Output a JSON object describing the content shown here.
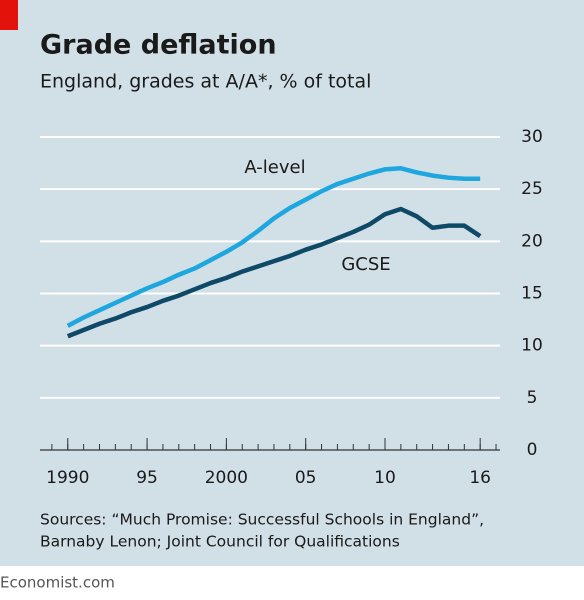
{
  "chart_data": {
    "type": "line",
    "title": "Grade deflation",
    "subtitle": "England, grades at A/A*, % of total",
    "source": [
      "Sources: “Much Promise: Successful Schools in England”,",
      "Barnaby Lenon; Joint Council for Qualifications"
    ],
    "footer": "Economist.com",
    "x": [
      1990,
      1991,
      1992,
      1993,
      1994,
      1995,
      1996,
      1997,
      1998,
      1999,
      2000,
      2001,
      2002,
      2003,
      2004,
      2005,
      2006,
      2007,
      2008,
      2009,
      2010,
      2011,
      2012,
      2013,
      2014,
      2015,
      2016
    ],
    "series": [
      {
        "name": "A-level",
        "color": "#1ea6df",
        "values": [
          11.9,
          12.7,
          13.4,
          14.1,
          14.8,
          15.5,
          16.1,
          16.8,
          17.4,
          18.2,
          19.0,
          19.9,
          21.0,
          22.2,
          23.2,
          24.0,
          24.8,
          25.5,
          26.0,
          26.5,
          26.9,
          27.0,
          26.6,
          26.3,
          26.1,
          26.0,
          26.0
        ]
      },
      {
        "name": "GCSE",
        "color": "#0e4a68",
        "values": [
          10.9,
          11.5,
          12.1,
          12.6,
          13.2,
          13.7,
          14.3,
          14.8,
          15.4,
          16.0,
          16.5,
          17.1,
          17.6,
          18.1,
          18.6,
          19.2,
          19.7,
          20.3,
          20.9,
          21.6,
          22.6,
          23.1,
          22.4,
          21.3,
          21.5,
          21.5,
          20.5
        ]
      }
    ],
    "xlim": [
      1988.25,
      2017.25
    ],
    "xticks": [
      1990,
      {
        "value": 1995,
        "label": "95"
      },
      2000,
      {
        "value": 2005,
        "label": "05"
      },
      {
        "value": 2010,
        "label": "10"
      },
      {
        "value": 2016,
        "label": "16"
      }
    ],
    "xminorticks": [
      1989,
      1990,
      1991,
      1992,
      1993,
      1994,
      1995,
      1996,
      1997,
      1998,
      1999,
      2000,
      2001,
      2002,
      2003,
      2004,
      2005,
      2006,
      2007,
      2008,
      2009,
      2010,
      2011,
      2012,
      2013,
      2014,
      2015,
      2016,
      2017
    ],
    "ylim": [
      0,
      30
    ],
    "yticks": [
      0,
      5,
      10,
      15,
      20,
      25,
      30
    ],
    "grid": true
  }
}
